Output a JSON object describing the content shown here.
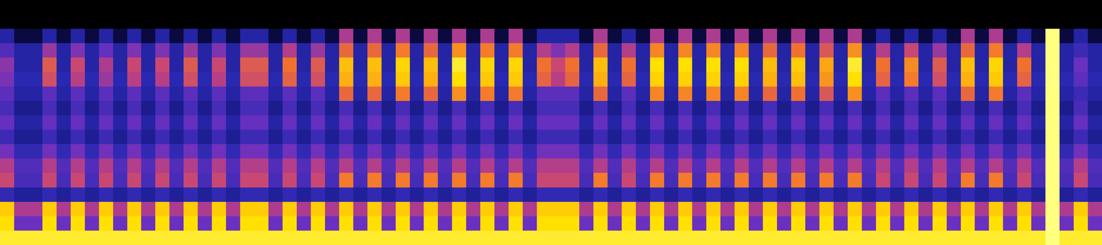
{
  "chart_data": {
    "type": "heatmap",
    "tick_labels": false,
    "zlim": [
      0,
      100
    ],
    "cells": [
      [
        0,
        0,
        0,
        0,
        0,
        0,
        0,
        0,
        0,
        0,
        0,
        0,
        0,
        0,
        0,
        0,
        0,
        0,
        0,
        0,
        0,
        0,
        0,
        0,
        0,
        0,
        0,
        0,
        0,
        0,
        0,
        0,
        0,
        0,
        0,
        0,
        0,
        0,
        0,
        0,
        0,
        0,
        0,
        0,
        0,
        0,
        0,
        0,
        0,
        0,
        0,
        0,
        0,
        0,
        0,
        0,
        0,
        0,
        0,
        0,
        0,
        0,
        0,
        0,
        0,
        0,
        0,
        0,
        0,
        0,
        0,
        0,
        0,
        0,
        0,
        0,
        0,
        0
      ],
      [
        0,
        0,
        0,
        0,
        0,
        0,
        0,
        0,
        0,
        0,
        0,
        0,
        0,
        0,
        0,
        0,
        0,
        0,
        0,
        0,
        0,
        0,
        0,
        0,
        0,
        0,
        0,
        0,
        0,
        0,
        0,
        0,
        0,
        0,
        0,
        0,
        0,
        0,
        0,
        0,
        0,
        0,
        0,
        0,
        0,
        0,
        0,
        0,
        0,
        0,
        0,
        0,
        0,
        0,
        0,
        0,
        0,
        0,
        0,
        0,
        0,
        0,
        0,
        0,
        0,
        0,
        0,
        0,
        0,
        0,
        0,
        0,
        0,
        0,
        0,
        0,
        0,
        0
      ],
      [
        30,
        12,
        12,
        30,
        12,
        30,
        12,
        30,
        12,
        30,
        12,
        30,
        12,
        30,
        12,
        30,
        12,
        30,
        30,
        12,
        30,
        12,
        30,
        12,
        55,
        12,
        55,
        12,
        55,
        12,
        55,
        12,
        55,
        12,
        55,
        12,
        55,
        12,
        30,
        30,
        30,
        12,
        55,
        12,
        30,
        12,
        55,
        12,
        55,
        12,
        55,
        12,
        55,
        12,
        55,
        12,
        55,
        12,
        55,
        12,
        55,
        12,
        30,
        12,
        30,
        12,
        30,
        12,
        55,
        12,
        55,
        12,
        30,
        12,
        100,
        12,
        30,
        12
      ],
      [
        40,
        30,
        30,
        52,
        30,
        48,
        30,
        44,
        30,
        48,
        30,
        48,
        30,
        52,
        30,
        48,
        30,
        52,
        52,
        30,
        56,
        30,
        52,
        30,
        68,
        30,
        68,
        30,
        72,
        30,
        68,
        30,
        76,
        30,
        72,
        30,
        72,
        30,
        56,
        48,
        56,
        30,
        68,
        30,
        56,
        30,
        74,
        30,
        74,
        30,
        74,
        30,
        74,
        30,
        68,
        30,
        70,
        30,
        64,
        30,
        76,
        30,
        56,
        30,
        60,
        30,
        52,
        30,
        68,
        30,
        72,
        30,
        56,
        30,
        100,
        30,
        36,
        30
      ],
      [
        50,
        30,
        30,
        65,
        30,
        60,
        30,
        55,
        30,
        60,
        30,
        60,
        30,
        65,
        30,
        60,
        30,
        65,
        65,
        30,
        70,
        30,
        65,
        30,
        85,
        30,
        85,
        30,
        90,
        30,
        85,
        30,
        95,
        30,
        90,
        30,
        90,
        30,
        70,
        60,
        70,
        30,
        85,
        30,
        70,
        30,
        92,
        30,
        92,
        30,
        92,
        30,
        92,
        30,
        85,
        30,
        88,
        30,
        80,
        30,
        95,
        30,
        70,
        30,
        75,
        30,
        65,
        30,
        85,
        30,
        90,
        30,
        70,
        30,
        100,
        30,
        45,
        30
      ],
      [
        47,
        32,
        32,
        62,
        32,
        57,
        32,
        52,
        32,
        57,
        32,
        57,
        32,
        62,
        32,
        57,
        32,
        62,
        62,
        32,
        67,
        32,
        62,
        32,
        82,
        32,
        82,
        32,
        87,
        32,
        82,
        32,
        92,
        32,
        87,
        32,
        87,
        32,
        67,
        57,
        67,
        32,
        82,
        32,
        67,
        32,
        89,
        32,
        89,
        32,
        89,
        32,
        89,
        32,
        82,
        32,
        85,
        32,
        77,
        32,
        92,
        32,
        67,
        32,
        72,
        32,
        62,
        32,
        82,
        32,
        87,
        32,
        67,
        32,
        100,
        32,
        42,
        32
      ],
      [
        42,
        30,
        30,
        42,
        30,
        42,
        30,
        42,
        30,
        42,
        30,
        42,
        30,
        42,
        30,
        42,
        30,
        42,
        42,
        30,
        42,
        30,
        42,
        30,
        68,
        30,
        68,
        30,
        72,
        30,
        68,
        30,
        76,
        30,
        72,
        30,
        72,
        30,
        42,
        42,
        42,
        30,
        68,
        30,
        42,
        30,
        74,
        30,
        74,
        30,
        74,
        30,
        74,
        30,
        68,
        30,
        70,
        30,
        64,
        30,
        76,
        30,
        42,
        30,
        42,
        30,
        42,
        30,
        68,
        30,
        72,
        30,
        42,
        30,
        100,
        30,
        36,
        30
      ],
      [
        38,
        26,
        26,
        38,
        26,
        38,
        26,
        38,
        26,
        38,
        26,
        38,
        26,
        38,
        26,
        38,
        26,
        38,
        38,
        26,
        38,
        26,
        38,
        26,
        38,
        26,
        38,
        26,
        38,
        26,
        38,
        26,
        38,
        26,
        38,
        26,
        38,
        26,
        38,
        38,
        38,
        26,
        38,
        26,
        38,
        26,
        38,
        26,
        38,
        26,
        38,
        26,
        38,
        26,
        38,
        26,
        38,
        26,
        38,
        26,
        38,
        26,
        38,
        26,
        38,
        26,
        38,
        26,
        38,
        26,
        38,
        26,
        38,
        26,
        100,
        26,
        38,
        26
      ],
      [
        44,
        30,
        30,
        44,
        30,
        44,
        30,
        44,
        30,
        44,
        30,
        44,
        30,
        44,
        30,
        44,
        30,
        44,
        44,
        30,
        44,
        30,
        44,
        30,
        44,
        30,
        44,
        30,
        44,
        30,
        44,
        30,
        44,
        30,
        44,
        30,
        44,
        30,
        44,
        44,
        44,
        30,
        44,
        30,
        44,
        30,
        44,
        30,
        44,
        30,
        44,
        30,
        44,
        30,
        44,
        30,
        44,
        30,
        44,
        30,
        44,
        30,
        44,
        30,
        44,
        30,
        44,
        30,
        44,
        30,
        44,
        30,
        44,
        30,
        100,
        30,
        44,
        30
      ],
      [
        36,
        27,
        27,
        36,
        27,
        36,
        27,
        36,
        27,
        36,
        27,
        36,
        27,
        36,
        27,
        36,
        27,
        36,
        36,
        27,
        36,
        27,
        36,
        27,
        36,
        27,
        36,
        27,
        36,
        27,
        36,
        27,
        36,
        27,
        36,
        27,
        36,
        27,
        36,
        36,
        36,
        27,
        36,
        27,
        36,
        27,
        36,
        27,
        36,
        27,
        36,
        27,
        36,
        27,
        36,
        27,
        36,
        27,
        36,
        27,
        36,
        27,
        36,
        27,
        36,
        27,
        36,
        27,
        36,
        27,
        36,
        27,
        36,
        27,
        100,
        27,
        36,
        27
      ],
      [
        46,
        34,
        34,
        46,
        34,
        46,
        34,
        46,
        34,
        46,
        34,
        46,
        34,
        46,
        34,
        46,
        34,
        46,
        46,
        34,
        46,
        34,
        46,
        34,
        46,
        34,
        46,
        34,
        46,
        34,
        46,
        34,
        46,
        34,
        46,
        34,
        46,
        34,
        46,
        46,
        46,
        34,
        46,
        34,
        46,
        34,
        46,
        34,
        46,
        34,
        46,
        34,
        46,
        34,
        46,
        34,
        46,
        34,
        46,
        34,
        46,
        34,
        46,
        34,
        46,
        34,
        46,
        34,
        46,
        34,
        46,
        34,
        46,
        34,
        100,
        34,
        46,
        34
      ],
      [
        56,
        40,
        40,
        56,
        40,
        56,
        40,
        56,
        40,
        56,
        40,
        56,
        40,
        56,
        40,
        56,
        40,
        56,
        56,
        40,
        56,
        40,
        56,
        40,
        56,
        40,
        56,
        40,
        56,
        40,
        56,
        40,
        56,
        40,
        56,
        40,
        56,
        40,
        56,
        56,
        56,
        40,
        56,
        40,
        56,
        40,
        56,
        40,
        56,
        40,
        56,
        40,
        56,
        40,
        56,
        40,
        56,
        40,
        56,
        40,
        56,
        40,
        56,
        40,
        56,
        40,
        56,
        40,
        56,
        40,
        56,
        40,
        56,
        40,
        100,
        40,
        56,
        40
      ],
      [
        60,
        38,
        38,
        60,
        38,
        60,
        38,
        60,
        38,
        60,
        38,
        60,
        38,
        60,
        38,
        60,
        38,
        60,
        60,
        38,
        60,
        38,
        60,
        38,
        72,
        38,
        72,
        38,
        72,
        38,
        72,
        38,
        72,
        38,
        72,
        38,
        72,
        38,
        60,
        60,
        60,
        38,
        72,
        38,
        60,
        38,
        72,
        38,
        72,
        38,
        72,
        38,
        72,
        38,
        72,
        38,
        72,
        38,
        72,
        38,
        72,
        38,
        60,
        38,
        60,
        38,
        60,
        38,
        72,
        38,
        72,
        38,
        60,
        38,
        100,
        38,
        60,
        38
      ],
      [
        34,
        28,
        28,
        34,
        28,
        34,
        28,
        34,
        28,
        34,
        28,
        34,
        28,
        34,
        28,
        34,
        28,
        34,
        34,
        28,
        34,
        28,
        34,
        28,
        34,
        28,
        34,
        28,
        34,
        28,
        34,
        28,
        34,
        28,
        34,
        28,
        34,
        28,
        34,
        34,
        34,
        28,
        34,
        28,
        34,
        28,
        34,
        28,
        34,
        28,
        34,
        28,
        34,
        28,
        34,
        28,
        34,
        28,
        34,
        28,
        34,
        28,
        34,
        28,
        34,
        28,
        34,
        28,
        34,
        28,
        34,
        28,
        34,
        28,
        100,
        28,
        34,
        28
      ],
      [
        88,
        55,
        55,
        88,
        55,
        88,
        55,
        88,
        55,
        88,
        55,
        88,
        55,
        88,
        55,
        88,
        55,
        88,
        88,
        55,
        88,
        55,
        88,
        55,
        88,
        55,
        88,
        55,
        88,
        55,
        88,
        55,
        88,
        55,
        88,
        55,
        88,
        55,
        88,
        88,
        88,
        55,
        88,
        55,
        88,
        55,
        88,
        55,
        88,
        55,
        88,
        55,
        88,
        55,
        88,
        55,
        88,
        55,
        88,
        55,
        88,
        55,
        88,
        55,
        88,
        55,
        88,
        55,
        88,
        55,
        88,
        55,
        88,
        55,
        100,
        55,
        88,
        55
      ],
      [
        92,
        45,
        45,
        92,
        45,
        92,
        45,
        92,
        45,
        92,
        45,
        92,
        45,
        92,
        45,
        92,
        45,
        92,
        92,
        45,
        92,
        45,
        92,
        45,
        92,
        45,
        92,
        45,
        92,
        45,
        92,
        45,
        92,
        45,
        92,
        45,
        92,
        45,
        92,
        92,
        92,
        45,
        92,
        45,
        92,
        45,
        92,
        45,
        92,
        45,
        92,
        45,
        92,
        45,
        92,
        45,
        92,
        45,
        92,
        45,
        92,
        45,
        92,
        45,
        92,
        45,
        92,
        45,
        92,
        45,
        92,
        45,
        92,
        45,
        100,
        45,
        92,
        45
      ],
      [
        95,
        95,
        95,
        95,
        95,
        95,
        95,
        95,
        95,
        95,
        95,
        95,
        95,
        95,
        95,
        95,
        95,
        95,
        95,
        95,
        95,
        95,
        95,
        95,
        95,
        95,
        95,
        95,
        95,
        95,
        95,
        95,
        95,
        95,
        95,
        95,
        95,
        95,
        95,
        95,
        95,
        95,
        95,
        95,
        95,
        95,
        95,
        95,
        95,
        95,
        95,
        95,
        95,
        95,
        95,
        95,
        95,
        95,
        95,
        95,
        95,
        95,
        95,
        95,
        95,
        95,
        95,
        95,
        95,
        95,
        95,
        95,
        95,
        95,
        100,
        95,
        95,
        95
      ]
    ]
  }
}
